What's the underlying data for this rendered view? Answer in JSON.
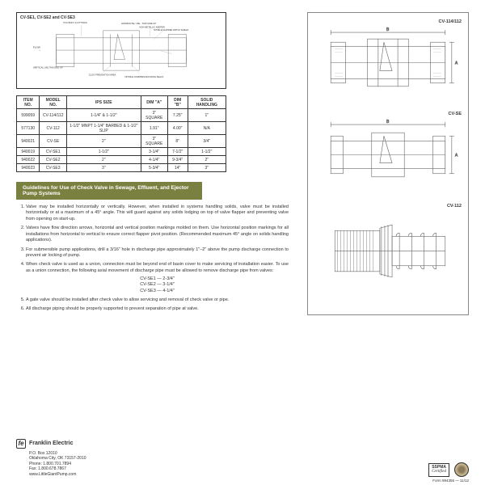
{
  "diagram_title": "CV-SE1, CV-SE2 and CV-SE3",
  "diagram_labels": {
    "pvc_body": "PVC BODY & FITTINGS",
    "horizontal": "HORIZONTAL USE - THIS SIDE UP",
    "keeper": "NON-METALLIC KEEPER",
    "flapper": "NITRILE FLAPPER W/PVC SHIELD",
    "flow": "FLOW",
    "vertical": "VERTICAL USE THIS END UP",
    "clog": "CLOG PREVENTION AREA",
    "ring": "NITRILE COMPRESSION RING SEALS"
  },
  "table": {
    "headers": [
      "ITEM NO.",
      "MODEL NO.",
      "IPS SIZE",
      "DIM \"A\"",
      "DIM \"B\"",
      "SOLID HANDLING"
    ],
    "rows": [
      [
        "599059",
        "CV-114/112",
        "1-1/4\" & 1-1/2\"",
        "3\" SQUARE",
        "7.25\"",
        "1\""
      ],
      [
        "577130",
        "CV-112",
        "1-1/2\" MNPT 1-1/4\" BARBED & 1-1/2\" SLIP",
        "1.91\"",
        "4.00\"",
        "N/A"
      ],
      [
        "940021",
        "CV-SE",
        "2\"",
        "3\" SQUARE",
        "8\"",
        "3/4\""
      ],
      [
        "940019",
        "CV-SE1",
        "1-1/2\"",
        "3-1/4\"",
        "7-1/2\"",
        "1-1/2\""
      ],
      [
        "940022",
        "CV-SE2",
        "2\"",
        "4-1/4\"",
        "9-3/4\"",
        "2\""
      ],
      [
        "940023",
        "CV-SE3",
        "3\"",
        "5-3/4\"",
        "14\"",
        "3\""
      ]
    ]
  },
  "guidelines_title": "Guidelines for Use of Check Valve in Sewage, Effluent, and Ejector Pump Systems",
  "guidelines": [
    "Valve may be installed horizontally or vertically. However, when installed in systems handling solids, valve must be installed horizontally or at a maximum of a 45° angle. This will guard against any solids lodging on top of valve flapper and preventing valve from opening on start-up.",
    "Valves have flow direction arrows, horizontal and vertical position markings molded on them. Use horizontal position markings for all installations from horizontal to vertical to ensure correct flapper pivot position. (Recommended maximum 45° angle on solids handling applications).",
    "For submersible pump applications, drill a 3/16\" hole in discharge pipe approximately 1\"–2\" above the pump discharge connection to prevent air locking of pump.",
    "When check valve is used as a union, connection must be beyond end of basin cover to make servicing of installation easier. To use as a union connection, the following axial movement of discharge pipe must be allowed to remove discharge pipe from valves:",
    "A gate valve should be installed after check valve to allow servicing and removal of check valve or pipe.",
    "All discharge piping should be properly supported to prevent separation of pipe at valve."
  ],
  "axial": [
    "CV-SE1 — 2-3/4\"",
    "CV-SE2 — 3-1/4\"",
    "CV-SE3 — 4-1/4\""
  ],
  "right_labels": [
    "CV-114/112",
    "CV-SE",
    "CV-112"
  ],
  "footer": {
    "company": "Franklin Electric",
    "addr1": "P.O. Box 12010",
    "addr2": "Oklahoma City, OK 73157-2010",
    "phone": "Phone: 1.800.701.7894",
    "fax": "Fax: 1.800.678.7867",
    "web": "www.LittleGiantPump.com",
    "sspma1": "SSPMA",
    "sspma2": "Certified",
    "form": "Form 994355 — 11/12"
  }
}
